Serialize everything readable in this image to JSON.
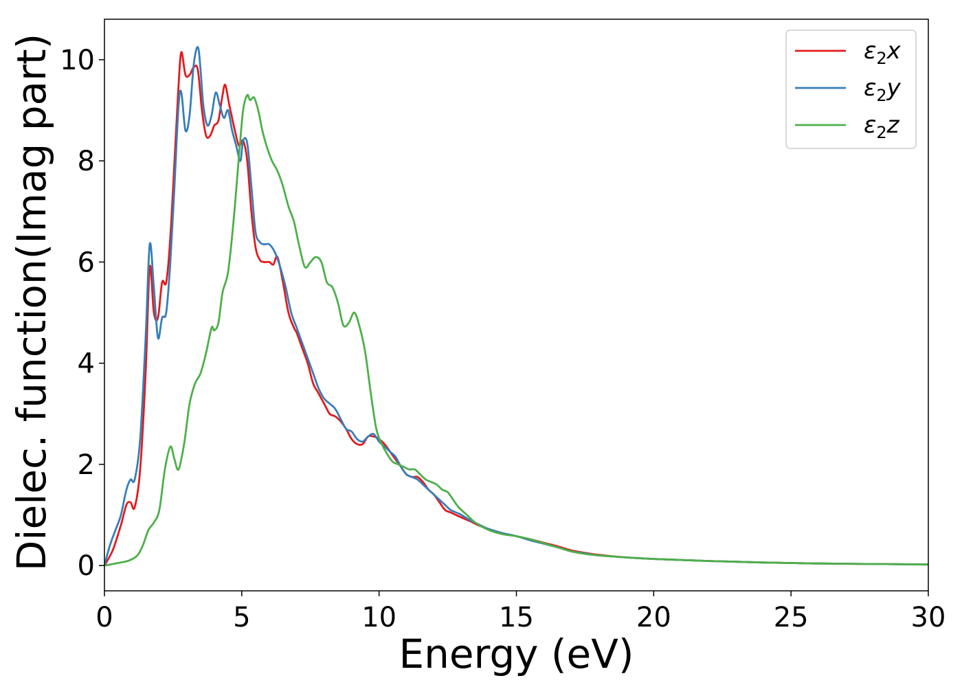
{
  "chart_data": {
    "type": "line",
    "xlabel": "Energy (eV)",
    "ylabel": "Dielec. function(Imag part)",
    "xlim": [
      0,
      30
    ],
    "ylim": [
      -0.5,
      10.8
    ],
    "xticks": [
      "0",
      "5",
      "10",
      "15",
      "20",
      "25",
      "30"
    ],
    "yticks": [
      "0",
      "2",
      "4",
      "6",
      "8",
      "10"
    ],
    "grid": false,
    "legend_position": "top-right",
    "series": [
      {
        "name": "ε₂x",
        "label_base": "ε",
        "label_sub": "2",
        "label_var": "x",
        "color": "#e41a1c",
        "x": [
          0,
          0.3,
          0.6,
          0.8,
          0.95,
          1.1,
          1.3,
          1.5,
          1.65,
          1.8,
          1.95,
          2.1,
          2.25,
          2.4,
          2.6,
          2.7,
          2.8,
          2.95,
          3.1,
          3.25,
          3.4,
          3.55,
          3.7,
          3.85,
          4.0,
          4.15,
          4.3,
          4.4,
          4.55,
          4.75,
          4.9,
          5.05,
          5.2,
          5.35,
          5.5,
          5.65,
          5.8,
          6.0,
          6.15,
          6.3,
          6.5,
          6.7,
          6.9,
          7.0,
          7.2,
          7.4,
          7.6,
          7.8,
          8.0,
          8.2,
          8.4,
          8.6,
          8.8,
          9.0,
          9.2,
          9.4,
          9.6,
          9.8,
          10.0,
          10.2,
          10.4,
          10.6,
          10.8,
          11.0,
          11.2,
          11.4,
          11.6,
          11.8,
          12.0,
          12.2,
          12.4,
          12.6,
          12.8,
          13.0,
          13.3,
          13.6,
          14.0,
          14.5,
          15.0,
          15.5,
          16.0,
          16.5,
          17.0,
          17.5,
          18.0,
          19.0,
          20.0,
          21.0,
          22.0,
          23.0,
          24.0,
          25.0,
          26.0,
          27.0,
          28.0,
          29.0,
          30.0
        ],
        "y": [
          0,
          0.3,
          0.8,
          1.2,
          1.25,
          1.15,
          1.9,
          3.8,
          5.9,
          5.0,
          4.9,
          5.6,
          5.6,
          6.5,
          8.5,
          9.5,
          10.15,
          9.7,
          9.7,
          9.85,
          9.8,
          9.0,
          8.5,
          8.5,
          8.7,
          8.8,
          9.3,
          9.5,
          9.1,
          8.6,
          8.3,
          8.4,
          8.0,
          7.0,
          6.3,
          6.05,
          6.0,
          6.0,
          5.95,
          6.1,
          5.6,
          5.0,
          4.7,
          4.6,
          4.3,
          4.0,
          3.6,
          3.4,
          3.2,
          3.0,
          2.95,
          2.85,
          2.7,
          2.5,
          2.4,
          2.4,
          2.55,
          2.55,
          2.5,
          2.4,
          2.25,
          2.1,
          1.95,
          1.8,
          1.75,
          1.75,
          1.65,
          1.5,
          1.4,
          1.25,
          1.1,
          1.05,
          1.0,
          0.95,
          0.88,
          0.8,
          0.72,
          0.64,
          0.58,
          0.52,
          0.45,
          0.38,
          0.3,
          0.25,
          0.21,
          0.16,
          0.13,
          0.11,
          0.09,
          0.075,
          0.06,
          0.05,
          0.04,
          0.035,
          0.03,
          0.025,
          0.02
        ]
      },
      {
        "name": "ε₂y",
        "label_base": "ε",
        "label_sub": "2",
        "label_var": "y",
        "color": "#377eb8",
        "x": [
          0,
          0.2,
          0.4,
          0.6,
          0.8,
          0.95,
          1.1,
          1.3,
          1.5,
          1.65,
          1.8,
          1.95,
          2.1,
          2.25,
          2.4,
          2.55,
          2.7,
          2.8,
          2.95,
          3.1,
          3.25,
          3.4,
          3.5,
          3.6,
          3.75,
          3.9,
          4.05,
          4.2,
          4.35,
          4.5,
          4.65,
          4.8,
          4.95,
          5.05,
          5.2,
          5.35,
          5.5,
          5.65,
          5.8,
          6.0,
          6.2,
          6.4,
          6.6,
          6.8,
          7.0,
          7.2,
          7.4,
          7.6,
          7.8,
          8.0,
          8.2,
          8.4,
          8.6,
          8.8,
          9.0,
          9.2,
          9.4,
          9.6,
          9.8,
          10.0,
          10.2,
          10.4,
          10.6,
          10.8,
          11.0,
          11.2,
          11.4,
          11.6,
          11.8,
          12.0,
          12.2,
          12.4,
          12.6,
          12.8,
          13.0,
          13.3,
          13.6,
          14.0,
          14.5,
          15.0,
          15.5,
          16.0,
          16.5,
          17.0,
          17.5,
          18.0,
          19.0,
          20.0,
          21.0,
          22.0,
          23.0,
          24.0,
          25.0,
          26.0,
          27.0,
          28.0,
          29.0,
          30.0
        ],
        "y": [
          0,
          0.4,
          0.7,
          1.0,
          1.5,
          1.7,
          1.7,
          2.5,
          4.5,
          6.35,
          5.5,
          4.5,
          4.9,
          5.0,
          6.0,
          7.5,
          9.1,
          9.35,
          8.6,
          8.9,
          9.9,
          10.25,
          9.8,
          9.1,
          8.7,
          8.9,
          9.35,
          9.1,
          8.85,
          9.0,
          8.6,
          8.3,
          8.0,
          8.4,
          8.35,
          7.5,
          6.6,
          6.4,
          6.35,
          6.35,
          6.2,
          5.9,
          5.5,
          5.0,
          4.7,
          4.4,
          4.1,
          3.8,
          3.5,
          3.3,
          3.2,
          3.1,
          2.9,
          2.7,
          2.65,
          2.5,
          2.45,
          2.55,
          2.6,
          2.45,
          2.35,
          2.25,
          2.15,
          1.95,
          1.8,
          1.75,
          1.7,
          1.6,
          1.5,
          1.4,
          1.3,
          1.2,
          1.1,
          1.05,
          1.0,
          0.9,
          0.82,
          0.72,
          0.64,
          0.58,
          0.5,
          0.43,
          0.36,
          0.28,
          0.24,
          0.2,
          0.16,
          0.13,
          0.11,
          0.09,
          0.075,
          0.06,
          0.05,
          0.04,
          0.035,
          0.03,
          0.025,
          0.02
        ]
      },
      {
        "name": "ε₂z",
        "label_base": "ε",
        "label_sub": "2",
        "label_var": "z",
        "color": "#4daf4a",
        "x": [
          0,
          0.5,
          0.9,
          1.2,
          1.4,
          1.6,
          1.8,
          2.0,
          2.2,
          2.4,
          2.55,
          2.7,
          2.9,
          3.1,
          3.3,
          3.5,
          3.7,
          3.9,
          4.0,
          4.15,
          4.3,
          4.5,
          4.7,
          4.9,
          5.05,
          5.2,
          5.3,
          5.45,
          5.6,
          5.75,
          5.9,
          6.1,
          6.3,
          6.5,
          6.7,
          6.9,
          7.1,
          7.3,
          7.5,
          7.7,
          7.9,
          8.1,
          8.3,
          8.5,
          8.7,
          8.9,
          9.1,
          9.3,
          9.5,
          9.7,
          9.9,
          10.1,
          10.3,
          10.5,
          10.7,
          10.9,
          11.1,
          11.3,
          11.5,
          11.7,
          11.9,
          12.1,
          12.3,
          12.5,
          12.7,
          12.9,
          13.2,
          13.5,
          14.0,
          14.5,
          15.0,
          15.5,
          16.0,
          16.5,
          17.0,
          17.5,
          18.0,
          19.0,
          20.0,
          21.0,
          22.0,
          23.0,
          24.0,
          25.0,
          26.0,
          27.0,
          28.0,
          29.0,
          30.0
        ],
        "y": [
          0,
          0.05,
          0.1,
          0.2,
          0.4,
          0.7,
          0.85,
          1.1,
          1.9,
          2.35,
          2.1,
          1.9,
          2.4,
          3.2,
          3.6,
          3.8,
          4.2,
          4.7,
          4.65,
          4.8,
          5.4,
          5.8,
          6.8,
          8.1,
          9.0,
          9.3,
          9.2,
          9.25,
          9.0,
          8.6,
          8.3,
          8.0,
          7.8,
          7.5,
          7.1,
          6.8,
          6.3,
          5.9,
          6.0,
          6.1,
          6.0,
          5.6,
          5.5,
          5.2,
          4.75,
          4.8,
          5.0,
          4.7,
          4.2,
          3.4,
          2.7,
          2.4,
          2.2,
          2.05,
          2.0,
          1.95,
          1.9,
          1.9,
          1.8,
          1.7,
          1.65,
          1.6,
          1.5,
          1.45,
          1.3,
          1.15,
          1.0,
          0.85,
          0.7,
          0.62,
          0.58,
          0.52,
          0.44,
          0.36,
          0.28,
          0.23,
          0.2,
          0.16,
          0.13,
          0.11,
          0.09,
          0.075,
          0.06,
          0.05,
          0.04,
          0.035,
          0.03,
          0.025,
          0.02
        ]
      }
    ]
  }
}
